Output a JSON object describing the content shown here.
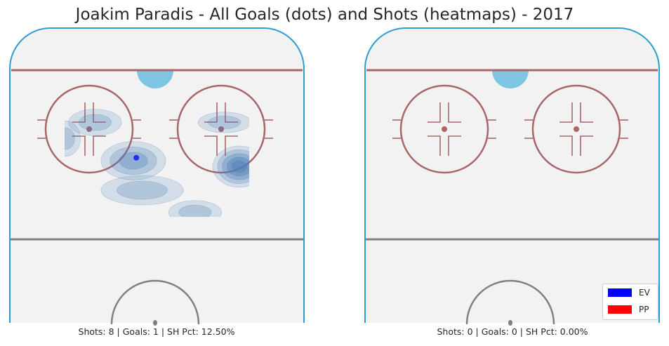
{
  "chart_data": {
    "type": "heatmap",
    "title": "Joakim Paradis - All Goals (dots) and Shots (heatmaps) - 2017",
    "panels": [
      {
        "caption": "Shots: 8 | Goals: 1 | SH Pct: 12.50%",
        "shots": 8,
        "goals": 1,
        "sh_pct": "12.50%",
        "goal_dots": [
          {
            "strength": "EV",
            "x": 0.43,
            "y": 0.44
          }
        ],
        "heat_blobs": [
          {
            "cx": 0.29,
            "cy": 0.32,
            "rx": 0.09,
            "ry": 0.045,
            "levels": 2
          },
          {
            "cx": 0.19,
            "cy": 0.375,
            "rx": 0.05,
            "ry": 0.06,
            "levels": 2
          },
          {
            "cx": 0.42,
            "cy": 0.45,
            "rx": 0.11,
            "ry": 0.065,
            "levels": 3
          },
          {
            "cx": 0.45,
            "cy": 0.55,
            "rx": 0.14,
            "ry": 0.05,
            "levels": 2
          },
          {
            "cx": 0.63,
            "cy": 0.625,
            "rx": 0.09,
            "ry": 0.04,
            "levels": 2
          },
          {
            "cx": 0.73,
            "cy": 0.32,
            "rx": 0.09,
            "ry": 0.035,
            "levels": 2
          },
          {
            "cx": 0.78,
            "cy": 0.47,
            "rx": 0.09,
            "ry": 0.07,
            "levels": 5
          }
        ]
      },
      {
        "caption": "Shots: 0 | Goals: 0 | SH Pct: 0.00%",
        "shots": 0,
        "goals": 0,
        "sh_pct": "0.00%",
        "goal_dots": [],
        "heat_blobs": []
      }
    ],
    "legend": {
      "placement": "lower-right",
      "entries": [
        {
          "label": "EV",
          "color": "#0000ff"
        },
        {
          "label": "PP",
          "color": "#ff0000"
        }
      ]
    },
    "colors": {
      "boards": "#2c9fd0",
      "ice": "#f2f2f2",
      "red_lines": "#a86669",
      "blue_line": "#808080",
      "crease": "#7ec4e3",
      "heat": "#4a7fb8"
    }
  }
}
